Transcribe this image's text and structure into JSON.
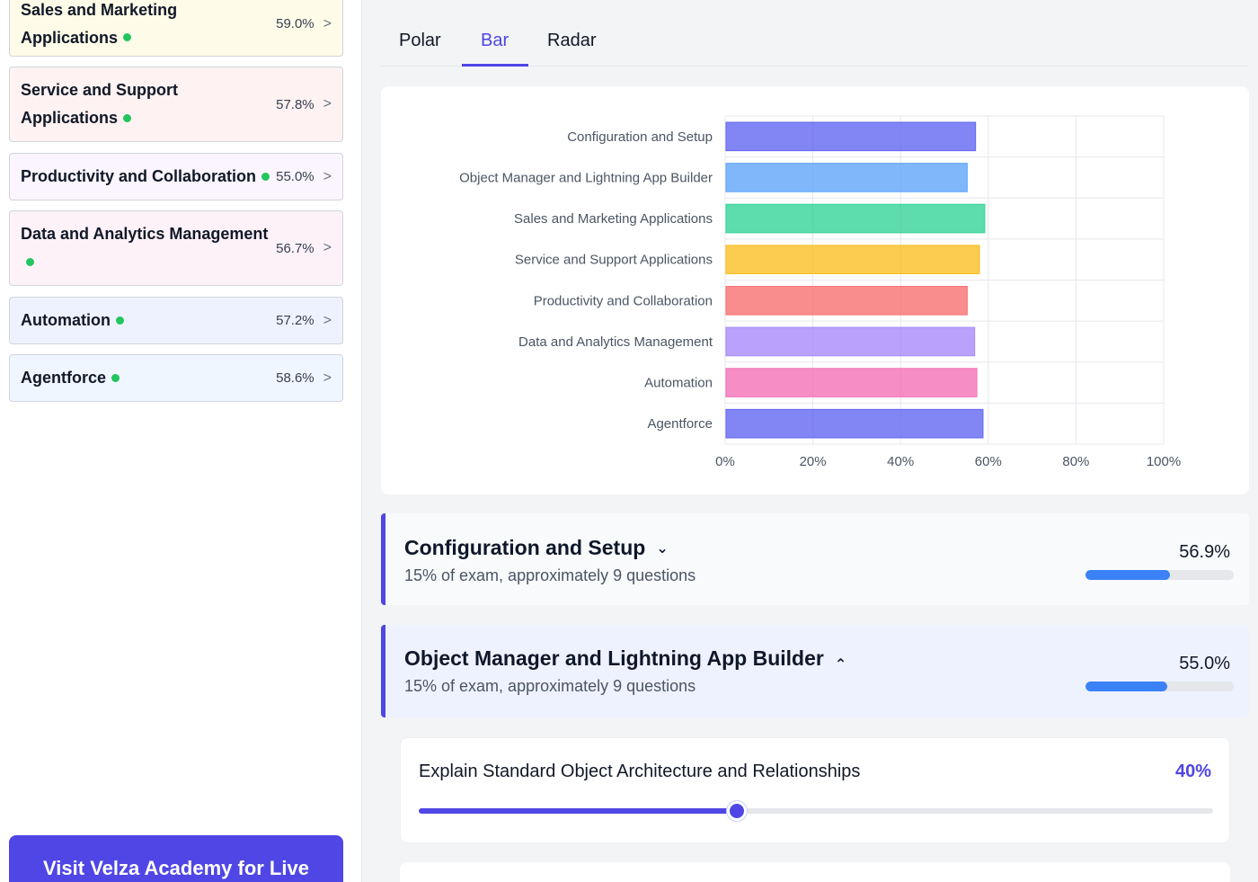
{
  "sidebar": {
    "topics": [
      {
        "name": "Sales and Marketing Applications",
        "pct": "59.0%",
        "bg": "#fefce8",
        "status_color": "#22c55e"
      },
      {
        "name": "Service and Support Applications",
        "pct": "57.8%",
        "bg": "#fef2f2",
        "status_color": "#22c55e"
      },
      {
        "name": "Productivity and Collaboration",
        "pct": "55.0%",
        "bg": "#faf5ff",
        "status_color": "#22c55e"
      },
      {
        "name": "Data and Analytics Management",
        "pct": "56.7%",
        "bg": "#fdf2f8",
        "status_color": "#22c55e"
      },
      {
        "name": "Automation",
        "pct": "57.2%",
        "bg": "#eef2ff",
        "status_color": "#22c55e"
      },
      {
        "name": "Agentforce",
        "pct": "58.6%",
        "bg": "#eff6ff",
        "status_color": "#22c55e"
      }
    ],
    "chevron": ">",
    "visit_button": "Visit Velza Academy for Live"
  },
  "tabs": [
    {
      "label": "Polar",
      "active": false
    },
    {
      "label": "Bar",
      "active": true
    },
    {
      "label": "Radar",
      "active": false
    }
  ],
  "chart_data": {
    "type": "bar",
    "orientation": "horizontal",
    "categories": [
      "Configuration and Setup",
      "Object Manager and Lightning App Builder",
      "Sales and Marketing Applications",
      "Service and Support Applications",
      "Productivity and Collaboration",
      "Data and Analytics Management",
      "Automation",
      "Agentforce"
    ],
    "values": [
      56.9,
      55.0,
      59.0,
      57.8,
      55.0,
      56.7,
      57.2,
      58.6
    ],
    "colors": [
      "#6366f1",
      "#60a5fa",
      "#34d399",
      "#fbbf24",
      "#f87171",
      "#a78bfa",
      "#f472b6",
      "#6366f1"
    ],
    "xlim": [
      0,
      100
    ],
    "xticks": [
      "0%",
      "20%",
      "40%",
      "60%",
      "80%",
      "100%"
    ],
    "grid": true,
    "legend": "none"
  },
  "sections": [
    {
      "title": "Configuration and Setup",
      "subtitle": "15% of exam, approximately 9 questions",
      "pct": "56.9%",
      "progress": 56.9,
      "caret": "⌄",
      "expanded": false
    },
    {
      "title": "Object Manager and Lightning App Builder",
      "subtitle": "15% of exam, approximately 9 questions",
      "pct": "55.0%",
      "progress": 55.0,
      "caret": "⌃",
      "expanded": true
    }
  ],
  "subtopic": {
    "title": "Explain Standard Object Architecture and Relationships",
    "pct": "40%",
    "value": 40
  }
}
